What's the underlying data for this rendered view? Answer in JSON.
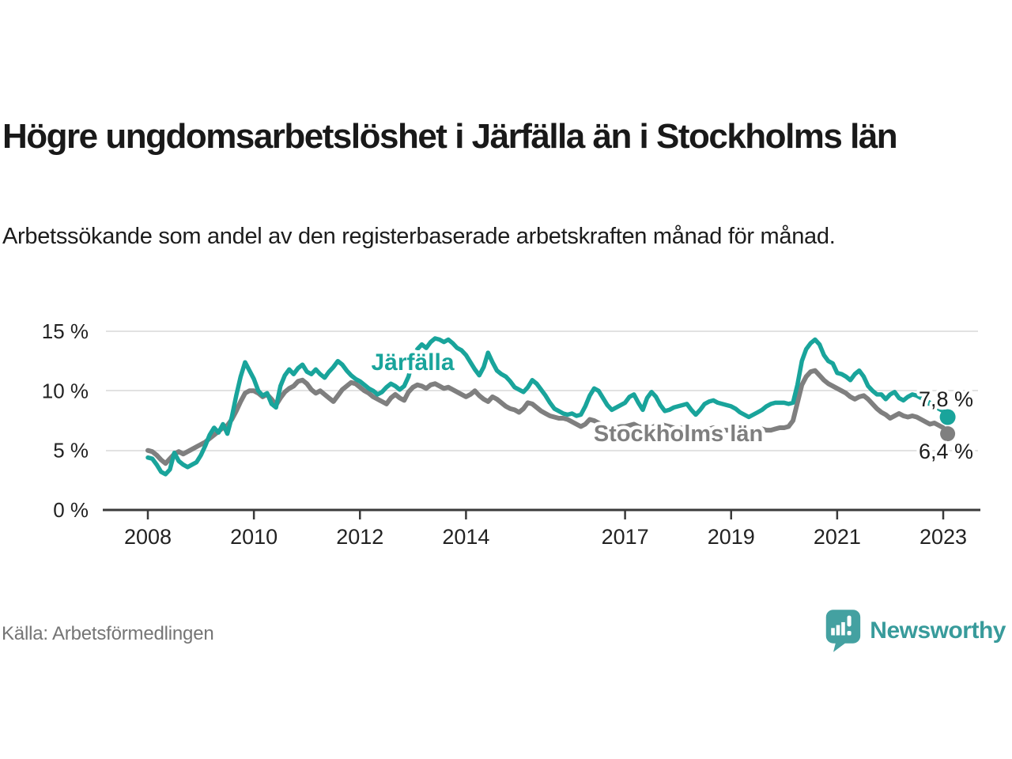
{
  "header": {
    "title": "Högre ungdomsarbetslöshet i Järfälla än i Stockholms län",
    "subtitle": "Arbetssökande som andel av den registerbaserade arbetskraften månad för månad."
  },
  "footer": {
    "source": "Källa: Arbetsförmedlingen",
    "brand": "Newsworthy"
  },
  "colors": {
    "jarfalla": "#19a49b",
    "stockholm": "#7f7f7f",
    "grid": "#d9d9d9",
    "axis": "#3a3a3a",
    "text": "#1c1c1c",
    "muted": "#757575",
    "logo": "#44a1a1"
  },
  "chart_data": {
    "type": "line",
    "frequency": "monthly",
    "x_start": "2008-01",
    "x_end": "2023-02",
    "ylim": [
      0,
      15
    ],
    "grid": "horizontal",
    "legend_position": "inline-labels",
    "y_ticks": [
      {
        "value": 0,
        "label": "0 %"
      },
      {
        "value": 5,
        "label": "5 %"
      },
      {
        "value": 10,
        "label": "10 %"
      },
      {
        "value": 15,
        "label": "15 %"
      }
    ],
    "x_ticks": [
      {
        "year": 2008,
        "label": "2008"
      },
      {
        "year": 2010,
        "label": "2010"
      },
      {
        "year": 2012,
        "label": "2012"
      },
      {
        "year": 2014,
        "label": "2014"
      },
      {
        "year": 2017,
        "label": "2017"
      },
      {
        "year": 2019,
        "label": "2019"
      },
      {
        "year": 2021,
        "label": "2021"
      },
      {
        "year": 2023,
        "label": "2023"
      }
    ],
    "series": [
      {
        "name": "Stockholms län",
        "color": "#7f7f7f",
        "end_label": "6,4 %",
        "last_value": 6.4,
        "values": [
          5.0,
          4.9,
          4.6,
          4.2,
          3.9,
          4.3,
          4.7,
          4.9,
          4.7,
          4.9,
          5.1,
          5.3,
          5.5,
          5.7,
          6.0,
          6.3,
          6.6,
          6.9,
          7.1,
          7.6,
          8.3,
          9.1,
          9.8,
          10.0,
          10.0,
          9.8,
          9.5,
          9.7,
          9.3,
          8.8,
          9.4,
          9.9,
          10.2,
          10.4,
          10.8,
          10.9,
          10.6,
          10.1,
          9.8,
          10.0,
          9.7,
          9.4,
          9.1,
          9.6,
          10.1,
          10.4,
          10.7,
          10.6,
          10.3,
          10.0,
          9.8,
          9.5,
          9.3,
          9.1,
          8.9,
          9.4,
          9.7,
          9.4,
          9.2,
          9.9,
          10.3,
          10.5,
          10.4,
          10.2,
          10.5,
          10.6,
          10.4,
          10.2,
          10.3,
          10.1,
          9.9,
          9.7,
          9.5,
          9.7,
          10.0,
          9.6,
          9.3,
          9.1,
          9.5,
          9.3,
          9.0,
          8.7,
          8.5,
          8.4,
          8.2,
          8.5,
          9.0,
          8.9,
          8.6,
          8.3,
          8.1,
          7.9,
          7.8,
          7.7,
          7.7,
          7.6,
          7.4,
          7.2,
          7.0,
          7.2,
          7.6,
          7.5,
          7.3,
          7.1,
          7.0,
          6.9,
          6.9,
          7.0,
          7.0,
          7.1,
          7.2,
          7.0,
          6.9,
          6.8,
          6.9,
          7.1,
          7.2,
          7.1,
          7.0,
          6.9,
          6.8,
          6.9,
          7.0,
          6.9,
          6.8,
          6.7,
          6.7,
          6.8,
          6.9,
          6.8,
          6.7,
          6.7,
          6.7,
          6.6,
          6.5,
          6.5,
          6.6,
          6.7,
          6.8,
          6.8,
          6.7,
          6.7,
          6.8,
          6.9,
          6.9,
          7.0,
          7.5,
          9.0,
          10.5,
          11.2,
          11.6,
          11.7,
          11.3,
          10.9,
          10.6,
          10.4,
          10.2,
          10.0,
          9.8,
          9.5,
          9.3,
          9.5,
          9.6,
          9.3,
          8.9,
          8.5,
          8.2,
          8.0,
          7.7,
          7.9,
          8.1,
          7.9,
          7.8,
          7.9,
          7.8,
          7.6,
          7.4,
          7.2,
          7.3,
          7.1,
          6.9,
          6.4
        ]
      },
      {
        "name": "Järfälla",
        "color": "#19a49b",
        "end_label": "7,8 %",
        "last_value": 7.8,
        "values": [
          4.4,
          4.3,
          3.8,
          3.2,
          3.0,
          3.4,
          4.8,
          4.1,
          3.8,
          3.6,
          3.8,
          4.0,
          4.6,
          5.4,
          6.3,
          6.9,
          6.5,
          7.2,
          6.4,
          7.8,
          9.6,
          11.2,
          12.4,
          11.7,
          11.0,
          10.0,
          9.6,
          9.8,
          8.9,
          8.6,
          10.4,
          11.3,
          11.8,
          11.4,
          11.9,
          12.2,
          11.6,
          11.4,
          11.8,
          11.4,
          11.1,
          11.6,
          12.0,
          12.5,
          12.2,
          11.7,
          11.3,
          11.0,
          10.8,
          10.5,
          10.2,
          10.0,
          9.7,
          9.9,
          10.3,
          10.6,
          10.4,
          10.1,
          10.4,
          11.2,
          12.6,
          13.5,
          13.9,
          13.6,
          14.1,
          14.4,
          14.3,
          14.1,
          14.3,
          14.0,
          13.6,
          13.4,
          13.0,
          12.4,
          11.8,
          11.3,
          12.0,
          13.2,
          12.4,
          11.7,
          11.4,
          11.2,
          10.8,
          10.3,
          10.1,
          9.9,
          10.3,
          10.9,
          10.6,
          10.1,
          9.6,
          9.0,
          8.5,
          8.3,
          8.1,
          8.0,
          8.1,
          7.9,
          8.0,
          8.7,
          9.6,
          10.2,
          10.0,
          9.4,
          8.8,
          8.4,
          8.6,
          8.8,
          9.0,
          9.5,
          9.7,
          9.0,
          8.4,
          9.4,
          9.9,
          9.5,
          8.8,
          8.3,
          8.4,
          8.6,
          8.7,
          8.8,
          8.9,
          8.4,
          8.0,
          8.4,
          8.9,
          9.1,
          9.2,
          9.0,
          8.9,
          8.8,
          8.7,
          8.5,
          8.2,
          8.0,
          7.8,
          8.0,
          8.2,
          8.4,
          8.7,
          8.9,
          9.0,
          9.0,
          9.0,
          8.9,
          9.0,
          10.5,
          12.5,
          13.5,
          14.0,
          14.3,
          13.9,
          13.0,
          12.5,
          12.3,
          11.5,
          11.4,
          11.2,
          10.9,
          11.4,
          11.7,
          11.2,
          10.4,
          10.0,
          9.7,
          9.7,
          9.3,
          9.7,
          9.9,
          9.4,
          9.2,
          9.5,
          9.7,
          9.6,
          9.4,
          9.2,
          9.0,
          8.7,
          8.5,
          8.3,
          7.8
        ]
      }
    ]
  }
}
